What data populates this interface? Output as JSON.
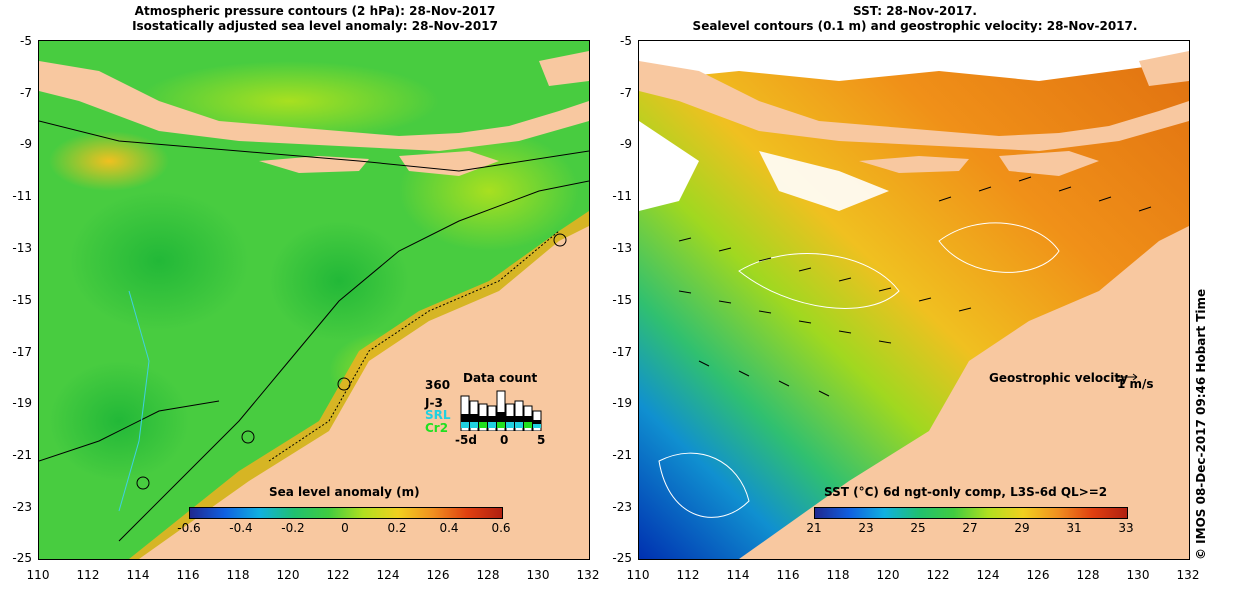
{
  "left_panel": {
    "title_line1": "Atmospheric pressure contours (2 hPa): 28-Nov-2017",
    "title_line2": "Isostatically adjusted sea level anomaly: 28-Nov-2017",
    "y_ticks": [
      "-5",
      "-7",
      "-9",
      "-11",
      "-13",
      "-15",
      "-17",
      "-19",
      "-21",
      "-23",
      "-25"
    ],
    "x_ticks": [
      "110",
      "112",
      "114",
      "116",
      "118",
      "120",
      "122",
      "124",
      "126",
      "128",
      "130",
      "132"
    ],
    "colorbar_label": "Sea level anomaly (m)",
    "colorbar_ticks": [
      "-0.6",
      "-0.4",
      "-0.2",
      "0",
      "0.2",
      "0.4",
      "0.6"
    ],
    "inset": {
      "title": "Data count",
      "max": "360",
      "series": [
        "J-3",
        "SRL",
        "Cr2"
      ],
      "x_start": "-5d",
      "x_mid": "0",
      "x_end": "5"
    },
    "colors": {
      "ocean": "#3fcc3f",
      "land": "#f8c8a0"
    }
  },
  "right_panel": {
    "title_line1": "SST: 28-Nov-2017.",
    "title_line2": "Sealevel contours (0.1 m) and geostrophic velocity: 28-Nov-2017.",
    "y_ticks": [
      "-5",
      "-7",
      "-9",
      "-11",
      "-13",
      "-15",
      "-17",
      "-19",
      "-21",
      "-23",
      "-25"
    ],
    "x_ticks": [
      "110",
      "112",
      "114",
      "116",
      "118",
      "120",
      "122",
      "124",
      "126",
      "128",
      "130",
      "132"
    ],
    "velocity_label": "Geostrophic velocity",
    "velocity_scale": "1 m/s",
    "colorbar_label": "SST (°C) 6d ngt-only comp, L3S-6d QL>=2",
    "colorbar_ticks": [
      "21",
      "23",
      "25",
      "27",
      "29",
      "31",
      "33"
    ],
    "colors": {
      "warm": "#f0a020",
      "cool": "#1060d0",
      "land": "#f8c8a0"
    }
  },
  "credit": "© IMOS 08-Dec-2017 09:46 Hobart Time"
}
